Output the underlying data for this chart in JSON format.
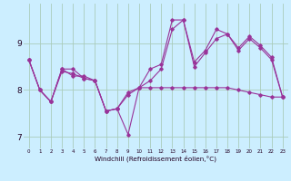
{
  "xlabel": "Windchill (Refroidissement éolien,°C)",
  "bg_color": "#cceeff",
  "grid_color": "#aaccbb",
  "line_color": "#993399",
  "xlim": [
    -0.5,
    23.5
  ],
  "ylim": [
    6.75,
    9.85
  ],
  "xticks": [
    0,
    1,
    2,
    3,
    4,
    5,
    6,
    7,
    8,
    9,
    10,
    11,
    12,
    13,
    14,
    15,
    16,
    17,
    18,
    19,
    20,
    21,
    22,
    23
  ],
  "yticks": [
    7,
    8,
    9
  ],
  "line1_x": [
    0,
    1,
    2,
    3,
    4,
    5,
    6,
    7,
    8,
    9,
    10,
    11,
    12,
    13,
    14,
    15,
    16,
    17,
    18,
    19,
    20,
    21,
    22,
    23
  ],
  "line1_y": [
    8.65,
    8.0,
    7.75,
    8.45,
    8.45,
    8.25,
    8.2,
    7.55,
    7.6,
    7.9,
    8.05,
    8.45,
    8.55,
    9.5,
    9.5,
    8.6,
    8.85,
    9.3,
    9.2,
    8.9,
    9.15,
    8.95,
    8.7,
    7.85
  ],
  "line2_x": [
    0,
    1,
    2,
    3,
    4,
    5,
    6,
    7,
    8,
    9,
    10,
    11,
    12,
    13,
    14,
    15,
    16,
    17,
    18,
    19,
    20,
    21,
    22,
    23
  ],
  "line2_y": [
    8.65,
    8.0,
    7.75,
    8.45,
    8.3,
    8.3,
    8.2,
    7.55,
    7.6,
    7.95,
    8.05,
    8.2,
    8.45,
    9.3,
    9.5,
    8.5,
    8.8,
    9.1,
    9.2,
    8.85,
    9.1,
    8.9,
    8.65,
    7.85
  ],
  "line3_x": [
    0,
    1,
    2,
    3,
    4,
    5,
    6,
    7,
    8,
    9,
    10,
    11,
    12,
    13,
    14,
    15,
    16,
    17,
    18,
    19,
    20,
    21,
    22,
    23
  ],
  "line3_y": [
    8.65,
    8.0,
    7.75,
    8.4,
    8.35,
    8.25,
    8.2,
    7.55,
    7.6,
    7.05,
    8.05,
    8.05,
    8.05,
    8.05,
    8.05,
    8.05,
    8.05,
    8.05,
    8.05,
    8.0,
    7.95,
    7.9,
    7.85,
    7.85
  ]
}
